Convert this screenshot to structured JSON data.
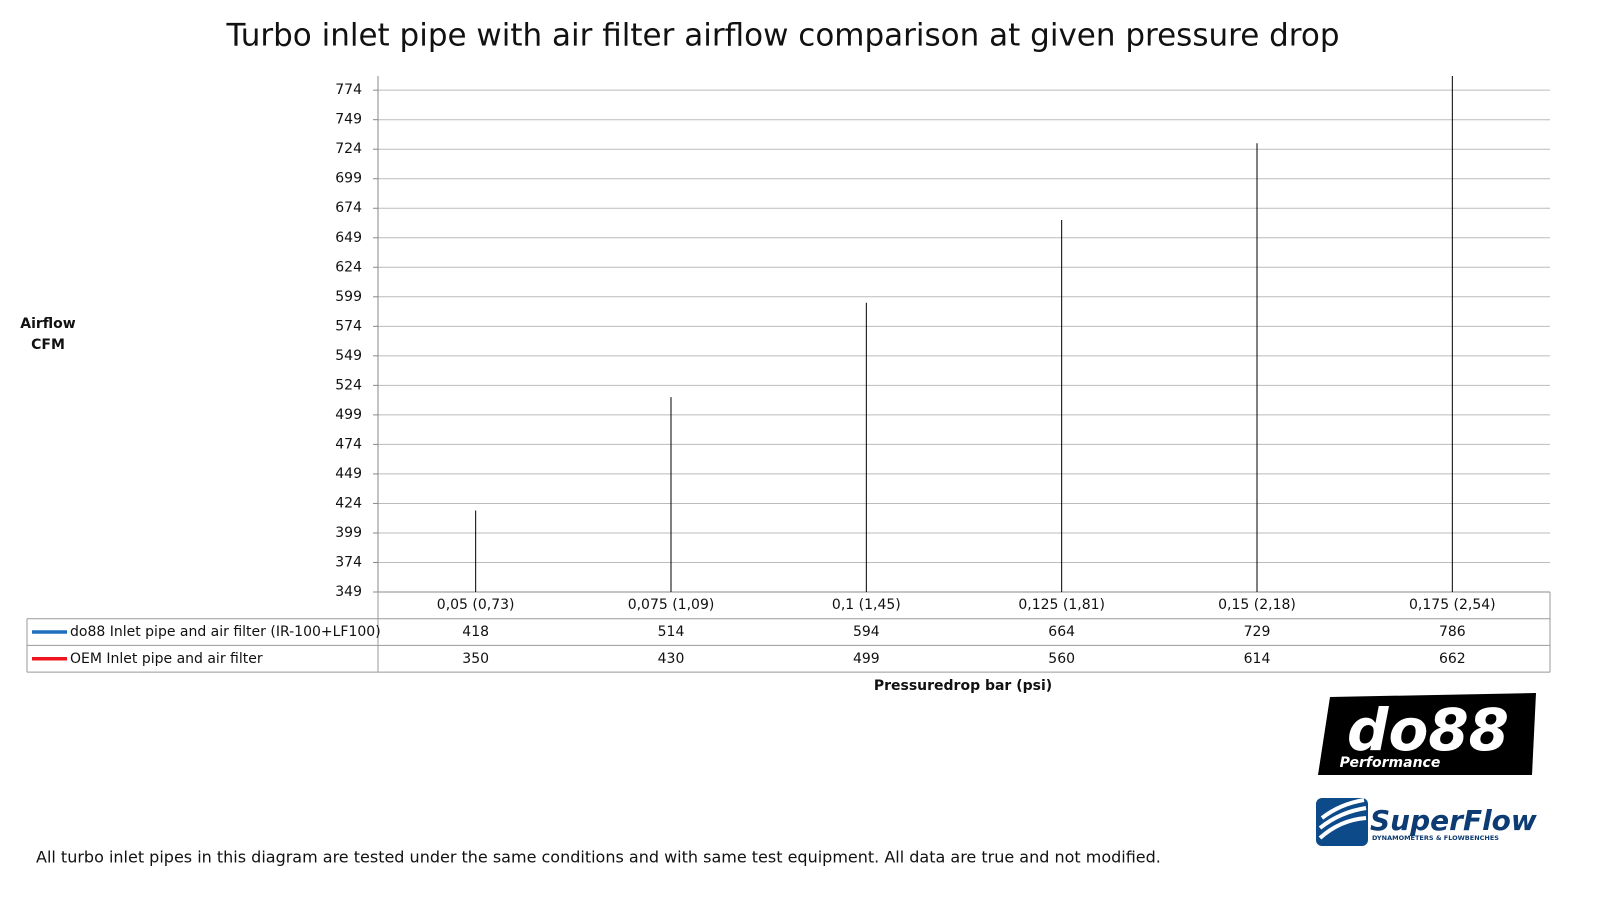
{
  "chart_data": {
    "type": "line",
    "title": "Turbo inlet pipe with air filter airflow comparison at given pressure drop",
    "y_label": "Airflow CFM",
    "x_label": "Pressuredrop bar (psi)",
    "categories": [
      "0,05 (0,73)",
      "0,075 (1,09)",
      "0,1 (1,45)",
      "0,125 (1,81)",
      "0,15 (2,18)",
      "0,175 (2,54)"
    ],
    "series": [
      {
        "name": "do88 Inlet pipe and air filter (IR-100+LF100)",
        "color": "#1f6fbf",
        "values": [
          418,
          514,
          594,
          664,
          729,
          786
        ]
      },
      {
        "name": "OEM Inlet pipe and air filter",
        "color": "#f0141e",
        "values": [
          350,
          430,
          499,
          560,
          614,
          662
        ]
      }
    ],
    "ylim": [
      349,
      786
    ],
    "yticks": [
      349,
      374,
      399,
      424,
      449,
      474,
      499,
      524,
      549,
      574,
      599,
      624,
      649,
      674,
      699,
      724,
      749,
      774
    ],
    "grid": true,
    "drop_lines": true,
    "footnote": "All turbo inlet pipes in this diagram are tested under the same conditions and with same test equipment. All data are true and not modified."
  },
  "logos": {
    "do88": "do88",
    "do88_sub": "Performance",
    "superflow": "SuperFlow",
    "superflow_sub": "DYNAMOMETERS & FLOWBENCHES"
  }
}
